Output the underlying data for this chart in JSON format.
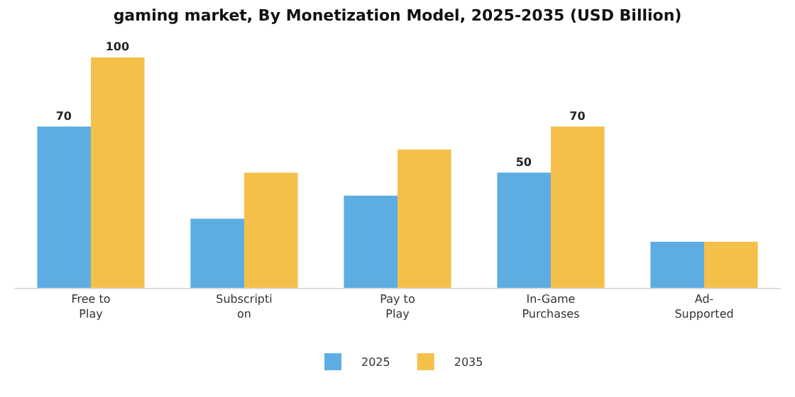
{
  "chart_data": {
    "type": "bar",
    "title": "gaming market, By Monetization Model, 2025-2035 (USD Billion)",
    "categories": [
      "Free to\nPlay",
      "Subscripti\non",
      "Pay to\nPlay",
      "In-Game\nPurchases",
      "Ad-\nSupported"
    ],
    "series": [
      {
        "name": "2025",
        "color": "#5dade2",
        "values": [
          70,
          30,
          40,
          50,
          20
        ],
        "value_labels": [
          "70",
          null,
          null,
          "50",
          null
        ]
      },
      {
        "name": "2035",
        "color": "#f5c04a",
        "values": [
          100,
          50,
          60,
          70,
          20
        ],
        "value_labels": [
          "100",
          null,
          null,
          "70",
          null
        ]
      }
    ],
    "legend": "bottom",
    "grid": false
  }
}
